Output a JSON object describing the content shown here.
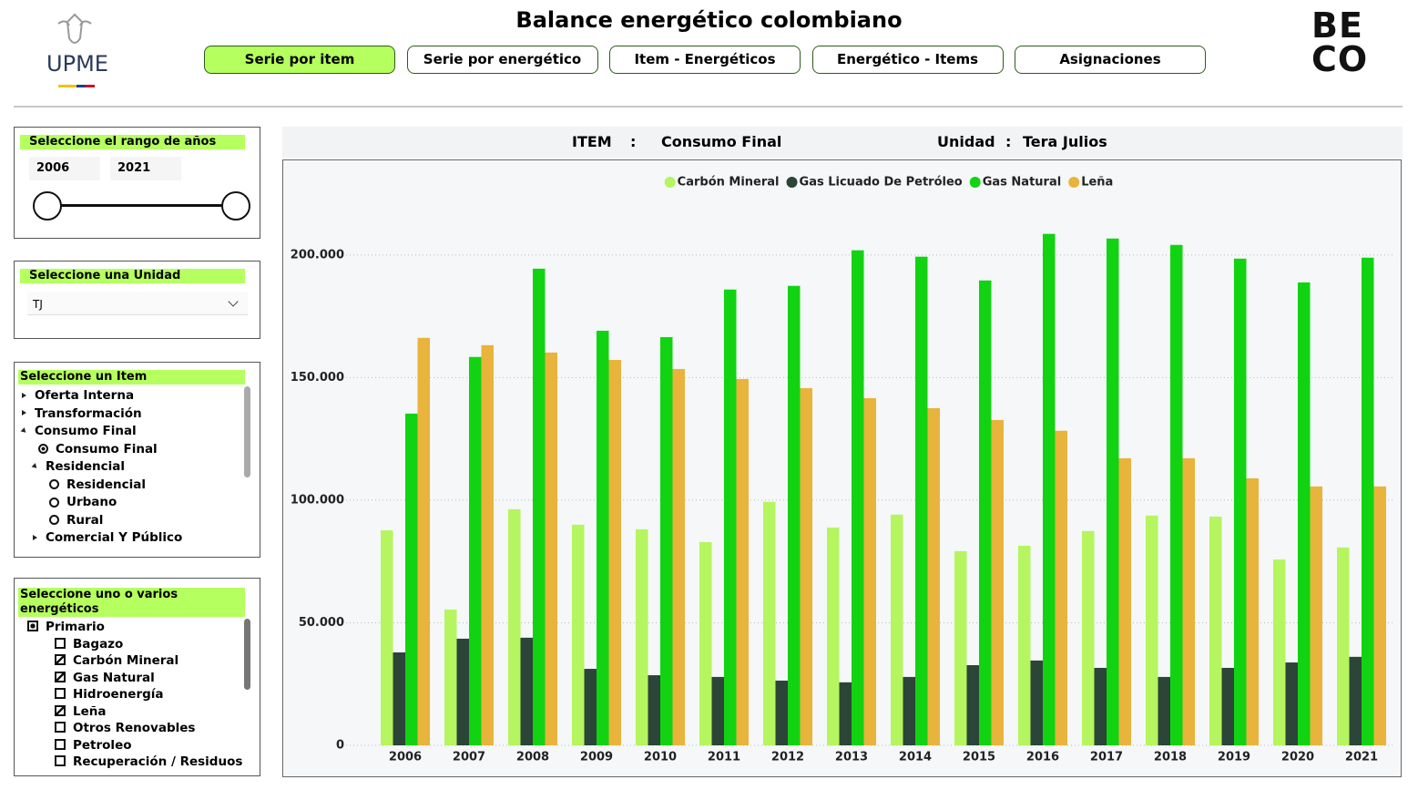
{
  "header": {
    "title": "Balance energético colombiano",
    "logo_left": "UPME",
    "logo_right": "BECO",
    "tabs": [
      "Serie por item",
      "Serie por energético",
      "Item - Energéticos",
      "Energético - Items",
      "Asignaciones"
    ],
    "active_tab": 0
  },
  "year_filter": {
    "title": "Seleccione el rango de años",
    "from": 2006,
    "to": 2021
  },
  "unit_filter": {
    "title": "Seleccione una Unidad",
    "value": "TJ"
  },
  "item_filter": {
    "title": "Seleccione un Item",
    "items": [
      {
        "label": "Oferta Interna",
        "level": 0,
        "state": "collapsed"
      },
      {
        "label": "Transformación",
        "level": 0,
        "state": "collapsed"
      },
      {
        "label": "Consumo Final",
        "level": 0,
        "state": "expanded"
      },
      {
        "label": "Consumo Final",
        "level": 1,
        "state": "selected"
      },
      {
        "label": "Residencial",
        "level": 1,
        "state": "expanded"
      },
      {
        "label": "Residencial",
        "level": 2,
        "state": "unselected"
      },
      {
        "label": "Urbano",
        "level": 2,
        "state": "unselected"
      },
      {
        "label": "Rural",
        "level": 2,
        "state": "unselected"
      },
      {
        "label": "Comercial Y Público",
        "level": 1,
        "state": "collapsed"
      }
    ]
  },
  "energy_filter": {
    "title": "Seleccione uno o varios energéticos",
    "items": [
      {
        "label": "Primario",
        "level": 0,
        "checked": "partial"
      },
      {
        "label": "Bagazo",
        "level": 1,
        "checked": false
      },
      {
        "label": "Carbón Mineral",
        "level": 1,
        "checked": true
      },
      {
        "label": "Gas Natural",
        "level": 1,
        "checked": true
      },
      {
        "label": "Hidroenergía",
        "level": 1,
        "checked": false
      },
      {
        "label": "Leña",
        "level": 1,
        "checked": true
      },
      {
        "label": "Otros Renovables",
        "level": 1,
        "checked": false
      },
      {
        "label": "Petroleo",
        "level": 1,
        "checked": false
      },
      {
        "label": "Recuperación / Residuos",
        "level": 1,
        "checked": false
      }
    ]
  },
  "chart_header": {
    "item_label": "ITEM",
    "separator": ":",
    "item_value": "Consumo Final",
    "unit_label": "Unidad",
    "unit_value": "Tera Julios"
  },
  "chart_data": {
    "type": "bar",
    "categories": [
      "2006",
      "2007",
      "2008",
      "2009",
      "2010",
      "2011",
      "2012",
      "2013",
      "2014",
      "2015",
      "2016",
      "2017",
      "2018",
      "2019",
      "2020",
      "2021"
    ],
    "series": [
      {
        "name": "Carbón Mineral",
        "color": "#b5f55f",
        "values": [
          87700,
          55400,
          96300,
          90000,
          88100,
          82900,
          99300,
          88800,
          94100,
          79200,
          81400,
          87400,
          93700,
          93300,
          75800,
          80700
        ]
      },
      {
        "name": "Gas Licuado De Petróleo",
        "color": "#2b4538",
        "values": [
          37900,
          43500,
          43900,
          31200,
          28600,
          27900,
          26400,
          25700,
          27900,
          32700,
          34600,
          31600,
          27900,
          31600,
          33800,
          36100
        ]
      },
      {
        "name": "Gas Natural",
        "color": "#12d312",
        "values": [
          135300,
          158400,
          194400,
          169100,
          166500,
          185900,
          187400,
          201900,
          199300,
          189600,
          208600,
          206700,
          204100,
          198500,
          188800,
          198900
        ]
      },
      {
        "name": "Leña",
        "color": "#e8b43c",
        "values": [
          166200,
          163200,
          160200,
          157200,
          153500,
          149400,
          145700,
          141600,
          137500,
          132700,
          128300,
          117100,
          117100,
          108900,
          105600,
          105600
        ]
      }
    ],
    "ylim": [
      0,
      220000
    ],
    "yticks": [
      0,
      {
        "value": 50000,
        "label": "50.000"
      },
      {
        "value": 100000,
        "label": "100.000"
      },
      {
        "value": 150000,
        "label": "150.000"
      },
      {
        "value": 200000,
        "label": "200.000"
      }
    ],
    "grid": true,
    "legend": "top"
  }
}
